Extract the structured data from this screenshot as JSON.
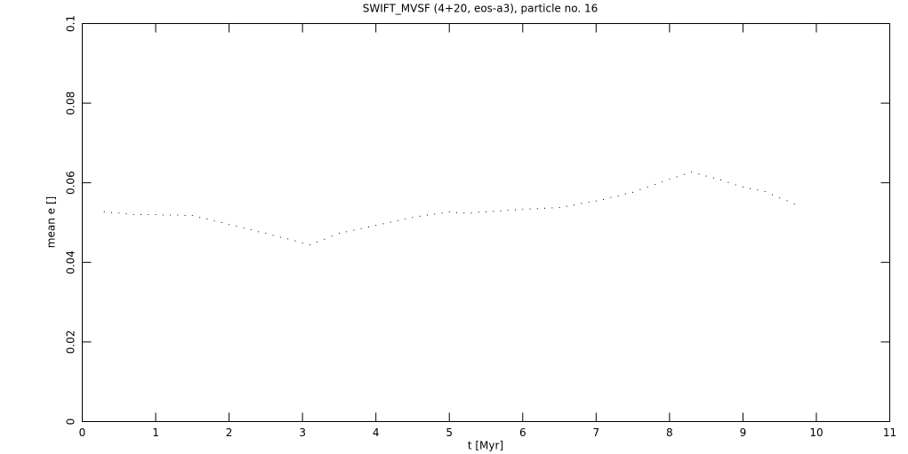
{
  "chart_data": {
    "type": "scatter",
    "title": "SWIFT_MVSF (4+20, eos-a3), particle no. 16",
    "xlabel": "t [Myr]",
    "ylabel": "mean e []",
    "xlim": [
      0,
      11
    ],
    "ylim": [
      0,
      0.1
    ],
    "xticks": [
      0,
      1,
      2,
      3,
      4,
      5,
      6,
      7,
      8,
      9,
      10,
      11
    ],
    "yticks": [
      0,
      0.02,
      0.04,
      0.06,
      0.08,
      0.1
    ],
    "color": "#000000",
    "x": [
      0.3,
      0.4,
      0.5,
      0.6,
      0.7,
      0.8,
      0.9,
      1.0,
      1.1,
      1.2,
      1.3,
      1.4,
      1.5,
      1.6,
      1.7,
      1.8,
      1.9,
      2.0,
      2.1,
      2.2,
      2.3,
      2.4,
      2.5,
      2.6,
      2.7,
      2.8,
      2.9,
      3.0,
      3.1,
      3.2,
      3.3,
      3.4,
      3.5,
      3.6,
      3.7,
      3.8,
      3.9,
      4.0,
      4.1,
      4.2,
      4.3,
      4.4,
      4.5,
      4.6,
      4.7,
      4.8,
      4.9,
      5.0,
      5.1,
      5.2,
      5.3,
      5.4,
      5.5,
      5.6,
      5.7,
      5.8,
      5.9,
      6.0,
      6.1,
      6.2,
      6.3,
      6.4,
      6.5,
      6.6,
      6.7,
      6.8,
      6.9,
      7.0,
      7.1,
      7.2,
      7.3,
      7.4,
      7.5,
      7.6,
      7.7,
      7.8,
      7.9,
      8.0,
      8.1,
      8.2,
      8.3,
      8.4,
      8.5,
      8.6,
      8.7,
      8.8,
      8.9,
      9.0,
      9.1,
      9.2,
      9.3,
      9.4,
      9.5,
      9.6,
      9.7
    ],
    "values": [
      0.0527,
      0.0525,
      0.0524,
      0.0522,
      0.052,
      0.052,
      0.052,
      0.052,
      0.0519,
      0.0519,
      0.0519,
      0.0518,
      0.0518,
      0.0513,
      0.0509,
      0.0504,
      0.05,
      0.0495,
      0.0491,
      0.0486,
      0.0482,
      0.0477,
      0.0473,
      0.0468,
      0.0463,
      0.0459,
      0.0454,
      0.0449,
      0.0444,
      0.0451,
      0.0458,
      0.0466,
      0.0473,
      0.0477,
      0.0481,
      0.0485,
      0.0489,
      0.0493,
      0.0497,
      0.0501,
      0.0505,
      0.0509,
      0.0513,
      0.0516,
      0.0519,
      0.0521,
      0.0524,
      0.0527,
      0.0525,
      0.0524,
      0.0524,
      0.0526,
      0.0527,
      0.0528,
      0.0529,
      0.0531,
      0.0532,
      0.0533,
      0.0534,
      0.0535,
      0.0536,
      0.0537,
      0.0538,
      0.0541,
      0.0544,
      0.0548,
      0.0551,
      0.0554,
      0.0558,
      0.0563,
      0.0567,
      0.0572,
      0.0576,
      0.0583,
      0.0589,
      0.0596,
      0.0602,
      0.0609,
      0.0615,
      0.0621,
      0.0627,
      0.0622,
      0.0617,
      0.0612,
      0.0607,
      0.0601,
      0.0595,
      0.0589,
      0.0585,
      0.0582,
      0.0578,
      0.057,
      0.0562,
      0.0555,
      0.0547
    ]
  }
}
